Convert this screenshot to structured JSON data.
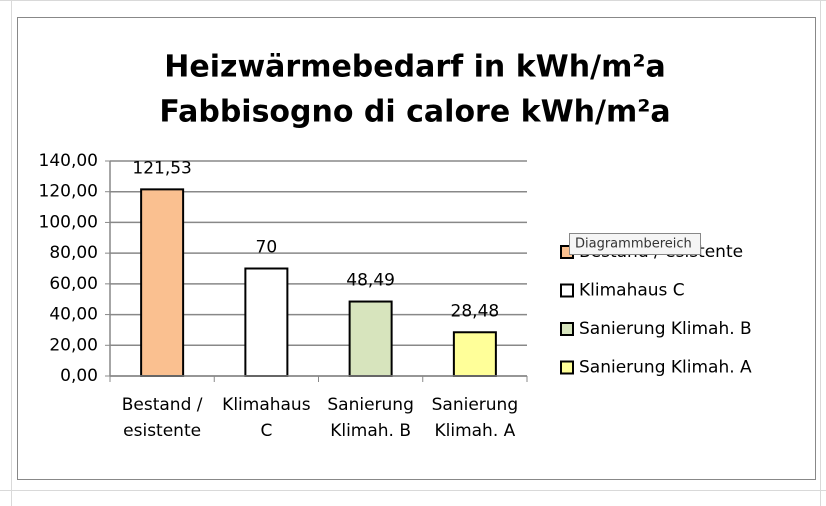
{
  "chart_data": {
    "type": "bar",
    "title": "Heizwärmebedarf in kWh/m²a",
    "subtitle": "Fabbisogno di calore kWh/m²a",
    "categories": [
      "Bestand / esistente",
      "Klimahaus C",
      "Sanierung Klimah. B",
      "Sanierung Klimah. A"
    ],
    "values": [
      121.53,
      70,
      48.49,
      28.48
    ],
    "value_labels": [
      "121,53",
      "70",
      "48,49",
      "28,48"
    ],
    "colors": [
      "#fac090",
      "#ffffff",
      "#d7e4bd",
      "#ffff99"
    ],
    "ylim": [
      0,
      140
    ],
    "yticks": [
      {
        "value": 0,
        "label": "0,00"
      },
      {
        "value": 20,
        "label": "20,00"
      },
      {
        "value": 40,
        "label": "40,00"
      },
      {
        "value": 60,
        "label": "60,00"
      },
      {
        "value": 80,
        "label": "80,00"
      },
      {
        "value": 100,
        "label": "100,00"
      },
      {
        "value": 120,
        "label": "120,00"
      },
      {
        "value": 140,
        "label": "140,00"
      }
    ],
    "grid": true,
    "legend": "right"
  },
  "tooltip": "Diagrammbereich"
}
